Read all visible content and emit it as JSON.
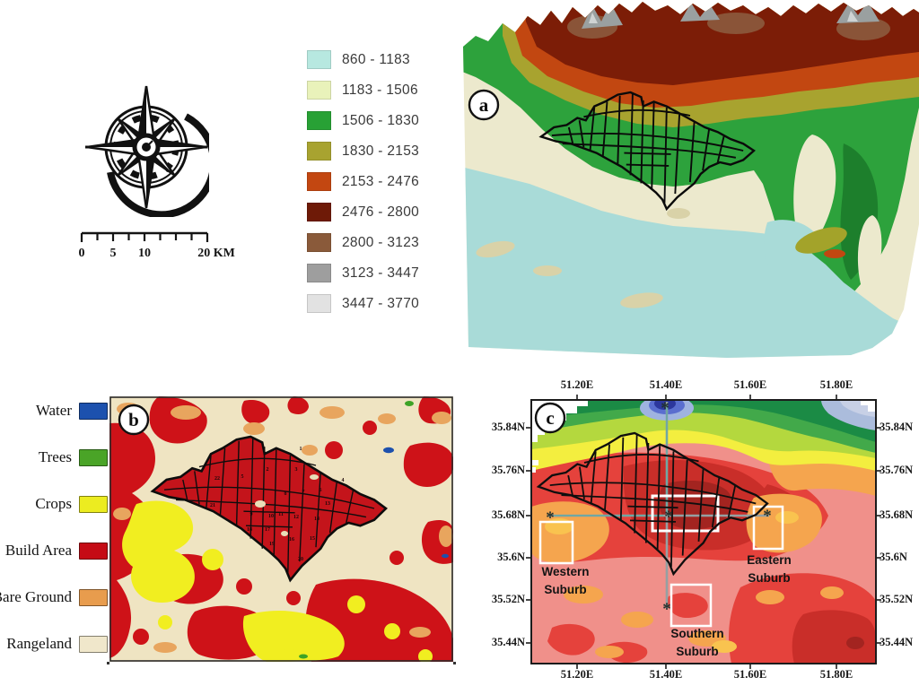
{
  "panels": {
    "a": "a",
    "b": "b",
    "c": "c"
  },
  "scale_bar": {
    "labels": [
      "0",
      "5",
      "10",
      "20 KM"
    ]
  },
  "elevation_legend": {
    "items": [
      {
        "range": "860 - 1183",
        "color": "#b7e8e0"
      },
      {
        "range": "1183 - 1506",
        "color": "#e9f2ba"
      },
      {
        "range": "1506 - 1830",
        "color": "#28a135"
      },
      {
        "range": "1830 - 2153",
        "color": "#a8a330"
      },
      {
        "range": "2153 - 2476",
        "color": "#c34711"
      },
      {
        "range": "2476 - 2800",
        "color": "#6e1a07"
      },
      {
        "range": "2800 - 3123",
        "color": "#8a5a3a"
      },
      {
        "range": "3123 - 3447",
        "color": "#9e9e9e"
      },
      {
        "range": "3447 - 3770",
        "color": "#e2e2e2"
      }
    ]
  },
  "landuse_legend": {
    "items": [
      {
        "label": "Water",
        "color": "#1c51ae"
      },
      {
        "label": "Trees",
        "color": "#4aa427"
      },
      {
        "label": "Crops",
        "color": "#ecec20"
      },
      {
        "label": "Build Area",
        "color": "#c50b15"
      },
      {
        "label": "Bare Ground",
        "color": "#e89c4d"
      },
      {
        "label": "Rangeland",
        "color": "#f0e7cb"
      }
    ]
  },
  "panel_b": {
    "district_numbers": [
      "1",
      "2",
      "3",
      "4",
      "5",
      "6",
      "7",
      "8",
      "9",
      "10",
      "11",
      "12",
      "13",
      "14",
      "15",
      "16",
      "17",
      "18",
      "19",
      "20",
      "21",
      "22"
    ]
  },
  "panel_c": {
    "x_ticks": [
      "51.20E",
      "51.40E",
      "51.60E",
      "51.80E"
    ],
    "y_ticks": [
      "35.84N",
      "35.76N",
      "35.68N",
      "35.6N",
      "35.52N",
      "35.44N"
    ],
    "suburbs": [
      "Western Suburb",
      "Eastern Suburb",
      "Southern Suburb"
    ],
    "marker": "*"
  }
}
